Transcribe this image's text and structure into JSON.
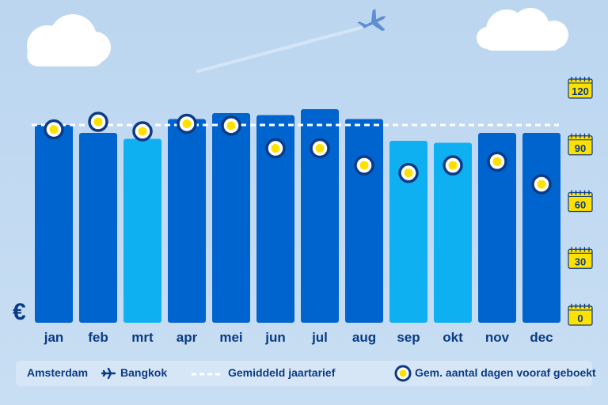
{
  "chart_data": {
    "type": "bar",
    "categories": [
      "jan",
      "feb",
      "mrt",
      "apr",
      "mei",
      "jun",
      "jul",
      "aug",
      "sep",
      "okt",
      "nov",
      "dec"
    ],
    "series": [
      {
        "name": "Amsterdam ✈ Bangkok",
        "values": [
          100,
          96,
          93,
          103,
          106,
          105,
          108,
          103,
          92,
          91,
          96,
          96
        ]
      },
      {
        "name": "Gem. aantal dagen vooraf geboekt",
        "values": [
          98,
          102,
          97,
          101,
          100,
          88,
          88,
          79,
          75,
          79,
          81,
          69
        ]
      }
    ],
    "highlight_color": "#0fb0f2",
    "bar_color": "#0064cf",
    "highlight_months": [
      "mrt",
      "sep",
      "okt"
    ],
    "average_line": 100,
    "currency_label": "€",
    "y2_ticks": [
      "0",
      "30",
      "60",
      "90",
      "120"
    ],
    "y2_range": [
      0,
      120
    ],
    "legend": {
      "route_from": "Amsterdam",
      "route_to": "Bangkok",
      "average": "Gemiddeld jaartarief",
      "days": "Gem. aantal dagen vooraf geboekt"
    }
  }
}
